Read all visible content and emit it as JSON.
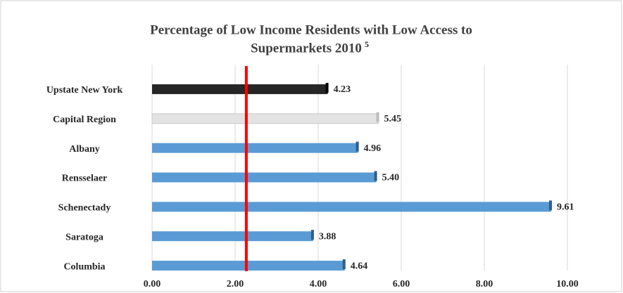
{
  "chart_data": {
    "type": "hbar",
    "title_lines": [
      "Percentage of Low Income Residents with Low Access to",
      "Supermarkets 2010"
    ],
    "title_footnote": "5",
    "categories": [
      "Upstate New York",
      "Capital Region",
      "Albany",
      "Rensselaer",
      "Schenectady",
      "Saratoga",
      "Columbia"
    ],
    "values": [
      4.23,
      5.45,
      4.96,
      5.4,
      9.61,
      3.88,
      4.64
    ],
    "value_labels": [
      "4.23",
      "5.45",
      "4.96",
      "5.40",
      "9.61",
      "3.88",
      "4.64"
    ],
    "colors": [
      "#262626",
      "#e3e3e3",
      "#5b9bd5",
      "#5b9bd5",
      "#5b9bd5",
      "#5b9bd5",
      "#5b9bd5"
    ],
    "xlim": [
      0,
      10
    ],
    "xticks": [
      {
        "value": 0,
        "label": "0.00"
      },
      {
        "value": 2,
        "label": "2.00"
      },
      {
        "value": 4,
        "label": "4.00"
      },
      {
        "value": 6,
        "label": "6.00"
      },
      {
        "value": 8,
        "label": "8.00"
      },
      {
        "value": 10,
        "label": "10.00"
      }
    ],
    "grid": true,
    "reference_line": {
      "value": 2.27,
      "color": "#ff0000"
    }
  }
}
